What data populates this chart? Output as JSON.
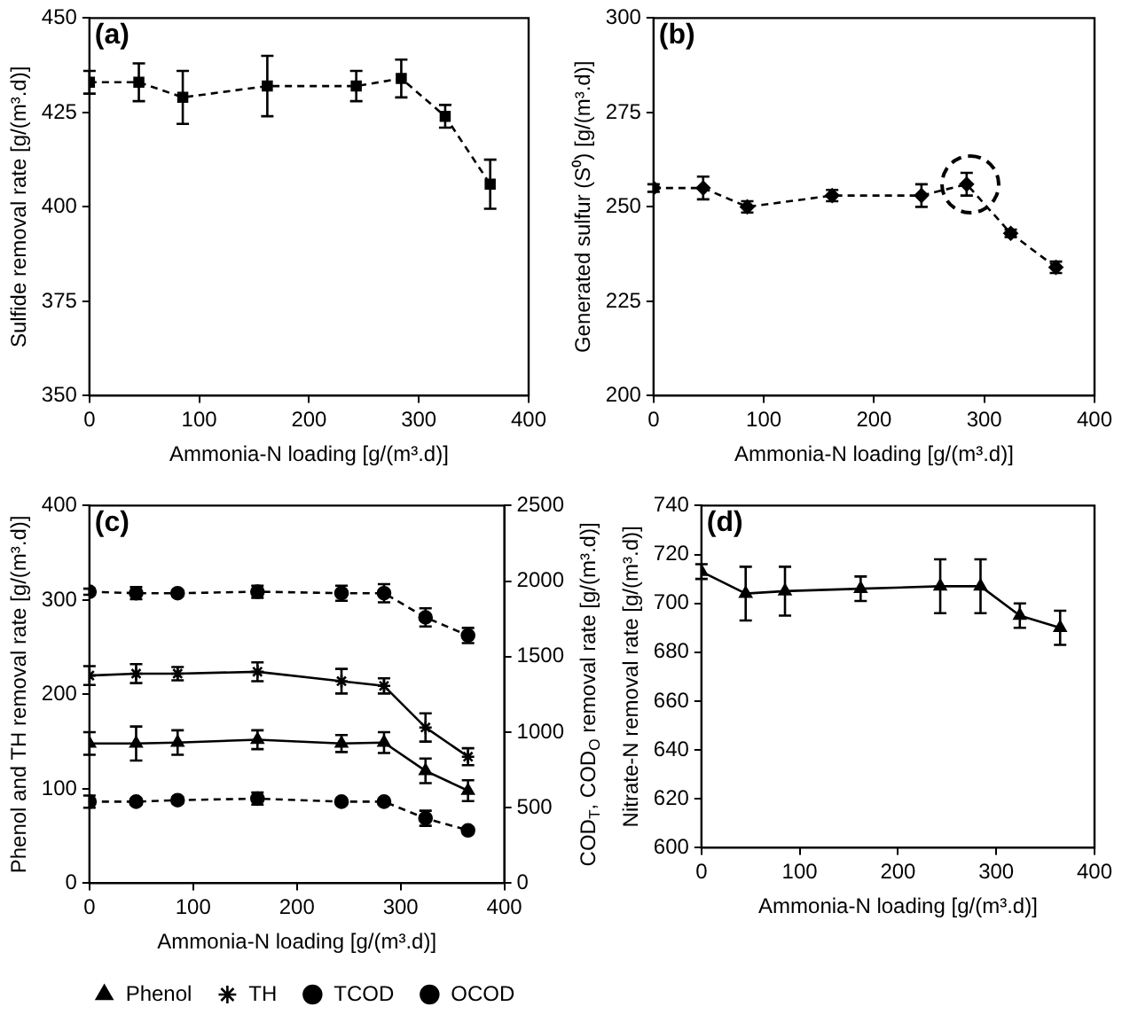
{
  "chart_data": [
    {
      "type": "line",
      "annotations": [
        "(a)"
      ],
      "xlabel": "Ammonia-N loading [g/(m³.d)]",
      "ylabel": "Sulfide removal rate [g/(m³.d)]",
      "xlim": [
        0,
        400
      ],
      "xticks": [
        0,
        100,
        200,
        300,
        400
      ],
      "ylim": [
        350,
        450
      ],
      "yticks": [
        350,
        375,
        400,
        425,
        450
      ],
      "grid": false,
      "legend": false,
      "marker": "square",
      "line_style": "dashed",
      "series": [
        {
          "color": "#000000",
          "x": [
            0,
            45,
            85,
            162,
            243,
            284,
            324,
            365
          ],
          "values": [
            433,
            433,
            429,
            432,
            432,
            434,
            424,
            406
          ],
          "errors": [
            3,
            5,
            7,
            8,
            4,
            5,
            3,
            6.5
          ]
        }
      ]
    },
    {
      "type": "line",
      "annotations": [
        "(b)"
      ],
      "xlabel": "Ammonia-N loading [g/(m³.d)]",
      "ylabel": "Generated sulfur (S⁰) [g/(m³.d)]",
      "xlim": [
        0,
        400
      ],
      "xticks": [
        0,
        100,
        200,
        300,
        400
      ],
      "ylim": [
        200,
        300
      ],
      "yticks": [
        200,
        225,
        250,
        275,
        300
      ],
      "grid": false,
      "legend": false,
      "marker": "diamond",
      "line_style": "dashed",
      "series": [
        {
          "color": "#000000",
          "x": [
            0,
            45,
            85,
            162,
            243,
            284,
            324,
            365
          ],
          "values": [
            255,
            255,
            250,
            253,
            253,
            256,
            243,
            234
          ],
          "errors": [
            1,
            3,
            1.5,
            1.5,
            3,
            3,
            1,
            1.5
          ]
        }
      ]
    },
    {
      "type": "line",
      "annotations": [
        "(c)"
      ],
      "xlabel": "Ammonia-N loading [g/(m³.d)]",
      "ylabel": "Phenol and TH removal rate [g/(m³.d)]",
      "y2label": "COD$_{T}$, COD$_{O}$ removal rate [g/(m³.d)]",
      "xlim": [
        0,
        400
      ],
      "xticks": [
        0,
        100,
        200,
        300,
        400
      ],
      "ylim": [
        0,
        400
      ],
      "yticks": [
        0,
        100,
        200,
        300,
        400
      ],
      "y2lim": [
        0,
        2500
      ],
      "y2ticks": [
        0,
        500,
        1000,
        1500,
        2000,
        2500
      ],
      "grid": false,
      "legend": "bottom",
      "series": [
        {
          "name": "Phenol",
          "color": "#000000",
          "marker": "triangle",
          "line_style": "solid",
          "x": [
            0,
            45,
            85,
            162,
            243,
            284,
            324,
            365
          ],
          "values": [
            148,
            148,
            149,
            152,
            148,
            149,
            119,
            98
          ],
          "errors": [
            12,
            18,
            13,
            10,
            9,
            11,
            13,
            11
          ]
        },
        {
          "name": "TH",
          "color": "#000000",
          "marker": "cross",
          "line_style": "solid",
          "x": [
            0,
            45,
            85,
            162,
            243,
            284,
            324,
            365
          ],
          "values": [
            220,
            222,
            222,
            224,
            214,
            209,
            165,
            134
          ],
          "errors": [
            10,
            10,
            7,
            10,
            13,
            8,
            15,
            9
          ]
        },
        {
          "name": "TCOD",
          "color": "#000000",
          "marker": "circle",
          "line_style": "dashed",
          "axis": "y2",
          "x": [
            0,
            45,
            85,
            162,
            243,
            284,
            324,
            365
          ],
          "values": [
            1930,
            1920,
            1920,
            1930,
            1920,
            1920,
            1760,
            1640
          ],
          "errors": [
            20,
            40,
            20,
            40,
            50,
            60,
            60,
            50
          ]
        },
        {
          "name": "OCOD",
          "color": "#000000",
          "marker": "circle",
          "line_style": "dashed",
          "axis": "y2",
          "x": [
            0,
            45,
            85,
            162,
            243,
            284,
            324,
            365
          ],
          "values": [
            540,
            540,
            550,
            560,
            540,
            540,
            430,
            350
          ],
          "errors": [
            40,
            20,
            20,
            40,
            20,
            20,
            50,
            20
          ]
        }
      ]
    },
    {
      "type": "line",
      "annotations": [
        "(d)"
      ],
      "xlabel": "Ammonia-N loading [g/(m³.d)]",
      "ylabel": "Nitrate-N removal rate [g/(m³.d)]",
      "xlim": [
        0,
        400
      ],
      "xticks": [
        0,
        100,
        200,
        300,
        400
      ],
      "ylim": [
        600,
        740
      ],
      "yticks": [
        600,
        620,
        640,
        660,
        680,
        700,
        720,
        740
      ],
      "grid": false,
      "legend": false,
      "marker": "triangle",
      "line_style": "solid",
      "series": [
        {
          "color": "#000000",
          "x": [
            0,
            45,
            85,
            162,
            243,
            284,
            324,
            365
          ],
          "values": [
            713,
            704,
            705,
            706,
            707,
            707,
            695,
            690
          ],
          "errors": [
            3,
            11,
            10,
            5,
            11,
            11,
            5,
            7
          ]
        }
      ]
    }
  ]
}
